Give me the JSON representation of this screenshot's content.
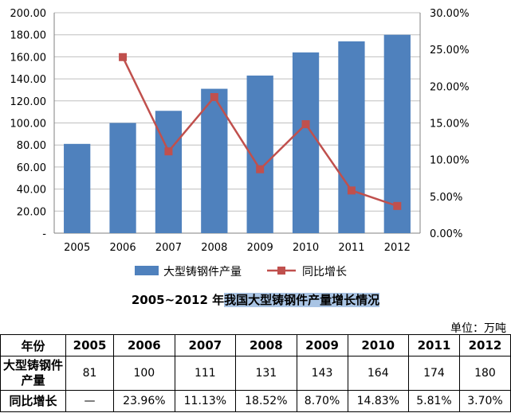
{
  "chart_data": {
    "type": "bar+line",
    "categories": [
      "2005",
      "2006",
      "2007",
      "2008",
      "2009",
      "2010",
      "2011",
      "2012"
    ],
    "series": [
      {
        "name": "大型铸钢件产量",
        "type": "bar",
        "axis": "left",
        "values": [
          81,
          100,
          111,
          131,
          143,
          164,
          174,
          180
        ],
        "color": "#4f81bd"
      },
      {
        "name": "同比增长",
        "type": "line",
        "axis": "right",
        "values": [
          null,
          23.96,
          11.13,
          18.52,
          8.7,
          14.83,
          5.81,
          3.7
        ],
        "color": "#c0504d"
      }
    ],
    "left_axis": {
      "ylim": [
        0,
        200
      ],
      "ticks": [
        "-",
        "20.00",
        "40.00",
        "60.00",
        "80.00",
        "100.00",
        "120.00",
        "140.00",
        "160.00",
        "180.00",
        "200.00"
      ]
    },
    "right_axis": {
      "ylim": [
        0,
        30
      ],
      "ticks": [
        "0.00%",
        "5.00%",
        "10.00%",
        "15.00%",
        "20.00%",
        "25.00%",
        "30.00%"
      ]
    },
    "grid": true,
    "legend": "bottom",
    "title_prefix": "2005~2012 年",
    "title_highlight": "我国大型铸钢件产量增长情况"
  },
  "table": {
    "unit": "单位：万吨",
    "header": [
      "年份",
      "2005",
      "2006",
      "2007",
      "2008",
      "2009",
      "2010",
      "2011",
      "2012"
    ],
    "row1": {
      "label": "大型铸钢件产量",
      "cells": [
        "81",
        "100",
        "111",
        "131",
        "143",
        "164",
        "174",
        "180"
      ]
    },
    "row2": {
      "label": "同比增长",
      "cells": [
        "—",
        "23.96%",
        "11.13%",
        "18.52%",
        "8.70%",
        "14.83%",
        "5.81%",
        "3.70%"
      ]
    }
  }
}
